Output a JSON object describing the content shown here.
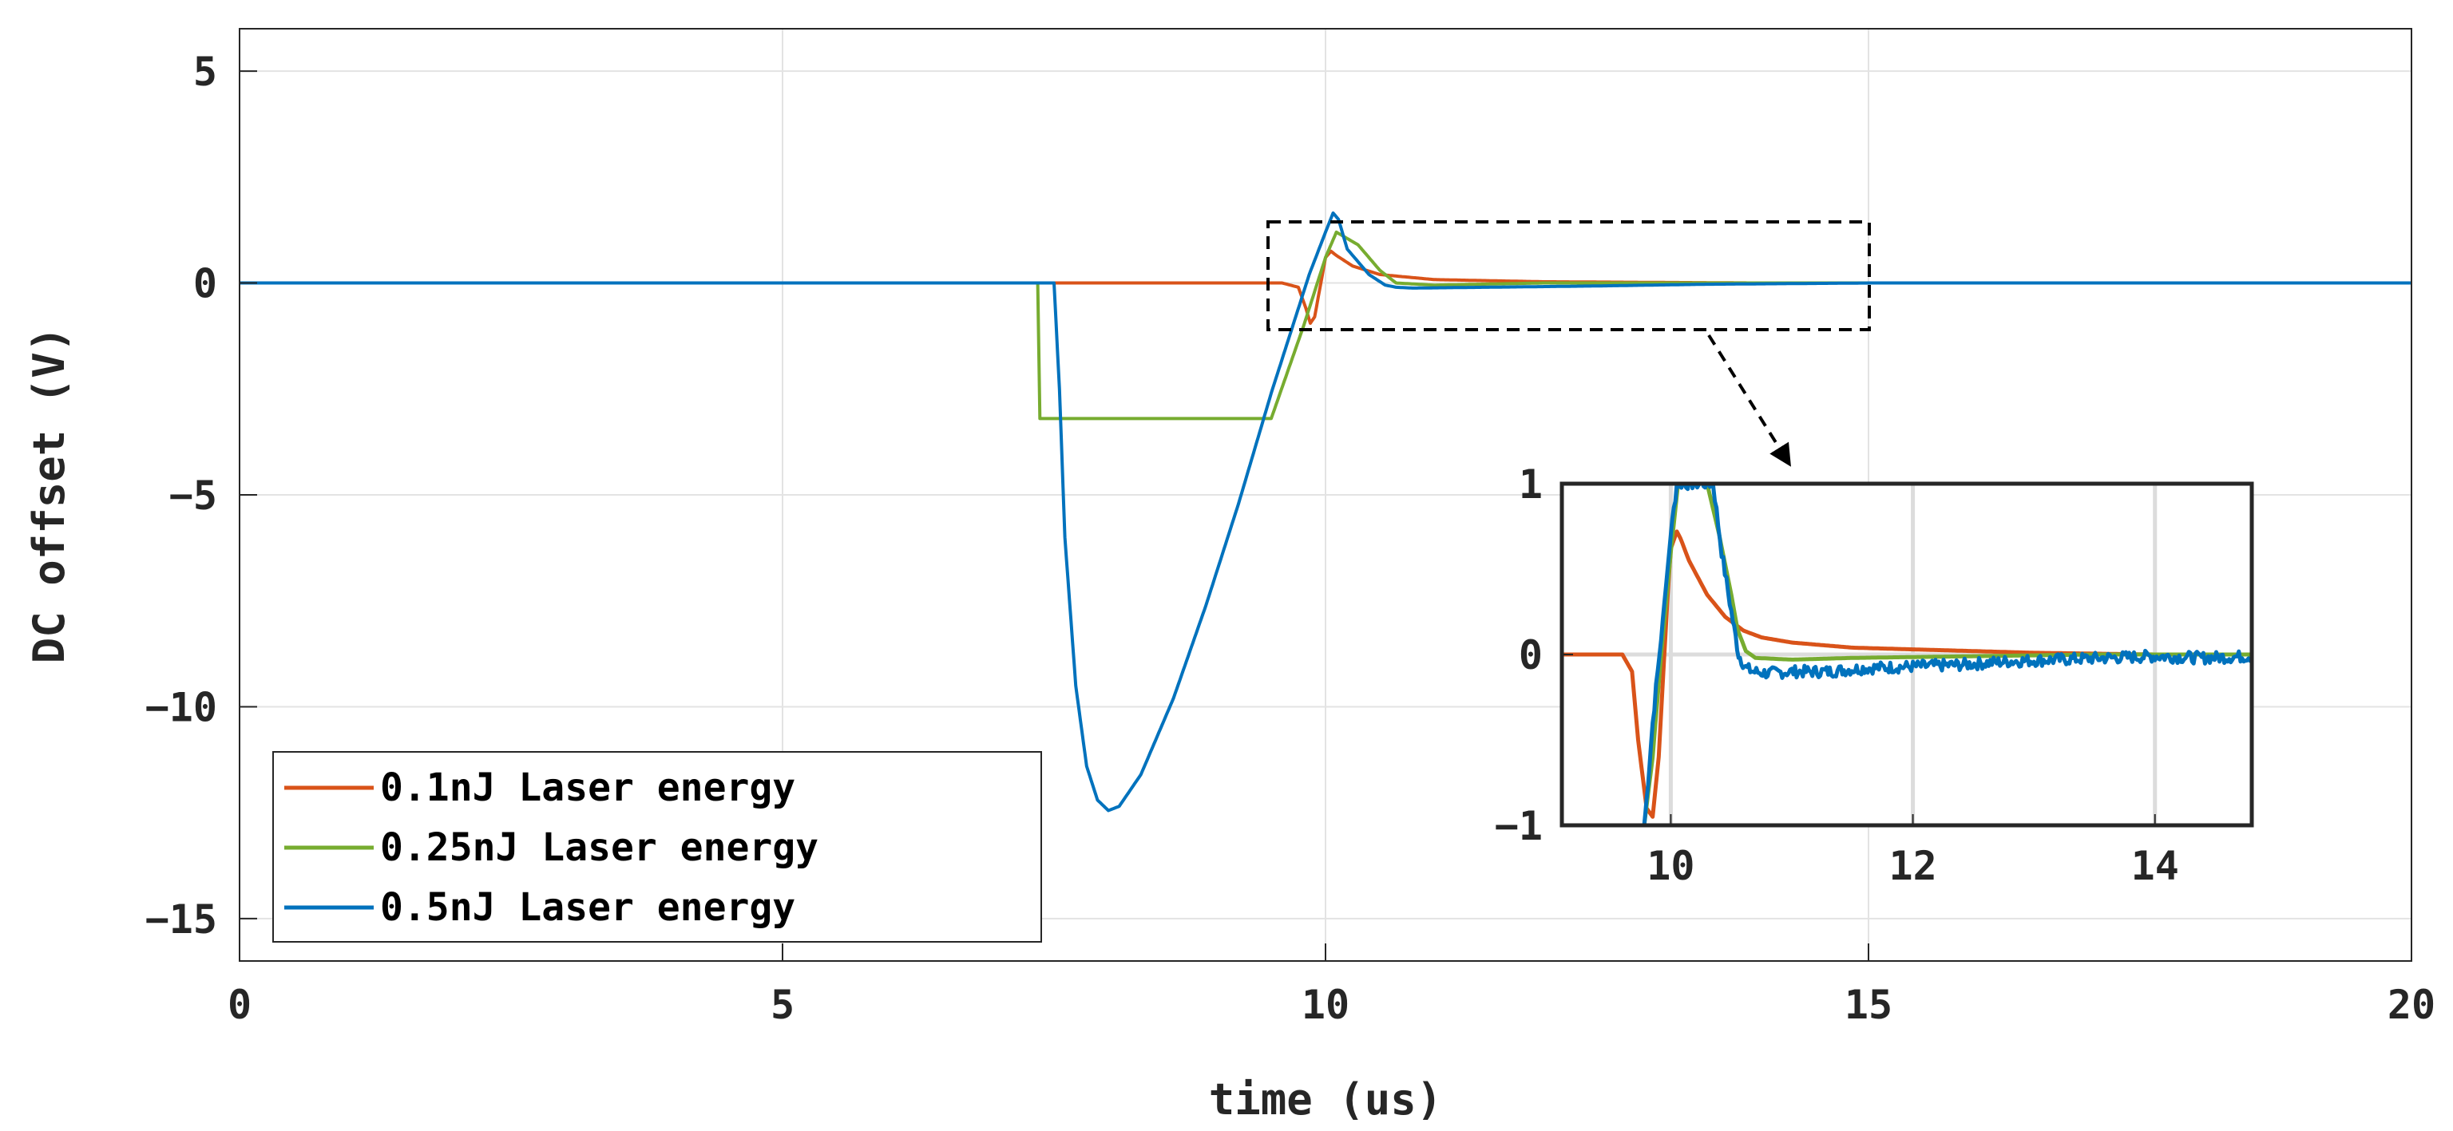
{
  "chart_data": [
    {
      "name": "main",
      "type": "line",
      "title": "",
      "xlabel": "time (us)",
      "ylabel": "DC offset (V)",
      "xlim": [
        0,
        20
      ],
      "ylim": [
        -16,
        6
      ],
      "xticks": [
        0,
        5,
        10,
        15,
        20
      ],
      "xtick_labels": [
        "0",
        "5",
        "10",
        "15",
        "20"
      ],
      "yticks": [
        5,
        0,
        -5,
        -10,
        -15
      ],
      "ytick_labels": [
        "5",
        "0",
        "−5",
        "−10",
        "−15"
      ],
      "grid": true,
      "legend_position": "bottom-left",
      "series": [
        {
          "name": "0.1nJ Laser energy",
          "color": "#d95319",
          "x": [
            0,
            7.35,
            9.6,
            9.75,
            9.82,
            9.86,
            9.9,
            9.95,
            10.0,
            10.05,
            10.1,
            10.25,
            10.5,
            11.0,
            12.0,
            14.0,
            15.0,
            17.0,
            20.0
          ],
          "y": [
            0,
            0,
            0,
            -0.1,
            -0.6,
            -0.95,
            -0.8,
            -0.1,
            0.6,
            0.75,
            0.65,
            0.4,
            0.2,
            0.08,
            0.03,
            0.0,
            0.0,
            0.0,
            0.0
          ]
        },
        {
          "name": "0.25nJ Laser energy",
          "color": "#77ac30",
          "x": [
            0,
            7.35,
            7.37,
            9.5,
            9.8,
            10.0,
            10.1,
            10.3,
            10.5,
            10.65,
            11.0,
            12.0,
            14.0,
            15.0,
            17.0,
            20.0
          ],
          "y": [
            0,
            0,
            -3.2,
            -3.2,
            -1.0,
            0.6,
            1.2,
            0.9,
            0.3,
            0.0,
            -0.05,
            0.0,
            0.0,
            0.0,
            0.0,
            0.0
          ],
          "hold": "step"
        },
        {
          "name": "0.5nJ Laser energy",
          "color": "#0072bd",
          "x": [
            0,
            7.5,
            7.55,
            7.6,
            7.7,
            7.8,
            7.9,
            8.0,
            8.1,
            8.3,
            8.6,
            8.9,
            9.2,
            9.5,
            9.7,
            9.85,
            10.0,
            10.07,
            10.12,
            10.2,
            10.4,
            10.55,
            10.65,
            10.8,
            11.5,
            12.5,
            13.5,
            14.5,
            15.0,
            17.0,
            20.0
          ],
          "y": [
            0,
            0,
            -2.5,
            -6.0,
            -9.5,
            -11.4,
            -12.2,
            -12.45,
            -12.35,
            -11.6,
            -9.8,
            -7.6,
            -5.2,
            -2.6,
            -1.0,
            0.2,
            1.2,
            1.65,
            1.5,
            0.8,
            0.2,
            -0.05,
            -0.1,
            -0.12,
            -0.1,
            -0.07,
            -0.03,
            -0.01,
            0.0,
            0.0,
            0.0
          ]
        }
      ],
      "annotation": "dashed zoom box from x 9.5 to 15, y -1 to 1.4 with arrow to inset"
    },
    {
      "name": "inset",
      "type": "line",
      "xlim": [
        9.1,
        14.8
      ],
      "ylim": [
        -1,
        1
      ],
      "xticks": [
        10,
        12,
        14
      ],
      "xtick_labels": [
        "10",
        "12",
        "14"
      ],
      "yticks": [
        1,
        0,
        -1
      ],
      "ytick_labels": [
        "1",
        "0",
        "−1"
      ],
      "grid": true,
      "series": [
        {
          "name": "0.1nJ Laser energy",
          "color": "#d95319",
          "x": [
            9.1,
            9.6,
            9.68,
            9.73,
            9.8,
            9.85,
            9.9,
            9.97,
            10.0,
            10.05,
            10.08,
            10.15,
            10.3,
            10.45,
            10.6,
            10.75,
            11.0,
            11.5,
            12.0,
            13.0,
            14.0,
            14.8
          ],
          "y": [
            0.0,
            0.0,
            -0.1,
            -0.5,
            -0.9,
            -0.95,
            -0.6,
            0.3,
            0.62,
            0.72,
            0.68,
            0.55,
            0.35,
            0.22,
            0.14,
            0.1,
            0.07,
            0.04,
            0.03,
            0.01,
            0.0,
            0.0
          ]
        },
        {
          "name": "0.25nJ Laser energy",
          "color": "#77ac30",
          "x": [
            9.78,
            9.85,
            9.92,
            10.0,
            10.06,
            10.3,
            10.4,
            10.5,
            10.55,
            10.62,
            10.7,
            11.0,
            11.5,
            12.5,
            13.5,
            14.8
          ],
          "y": [
            -1.0,
            -0.6,
            0.0,
            0.6,
            1.0,
            1.0,
            0.7,
            0.35,
            0.15,
            0.02,
            -0.02,
            -0.03,
            -0.02,
            -0.01,
            0.0,
            0.0
          ]
        },
        {
          "name": "0.5nJ Laser energy",
          "color": "#0072bd",
          "x": [
            9.78,
            9.8,
            9.85,
            9.92,
            10.0,
            10.05,
            10.1,
            10.35,
            10.42,
            10.5,
            10.56,
            10.62,
            10.68,
            10.8,
            11.0,
            11.3,
            11.6,
            12.0,
            12.4,
            12.8,
            13.2,
            13.6,
            14.0,
            14.4,
            14.8
          ],
          "y": [
            -1.0,
            -0.85,
            -0.4,
            0.1,
            0.7,
            1.0,
            1.0,
            1.0,
            0.6,
            0.25,
            0.0,
            -0.08,
            -0.1,
            -0.11,
            -0.1,
            -0.1,
            -0.08,
            -0.07,
            -0.06,
            -0.04,
            -0.03,
            -0.02,
            -0.01,
            -0.02,
            -0.01
          ],
          "noise": 0.035
        }
      ]
    }
  ]
}
